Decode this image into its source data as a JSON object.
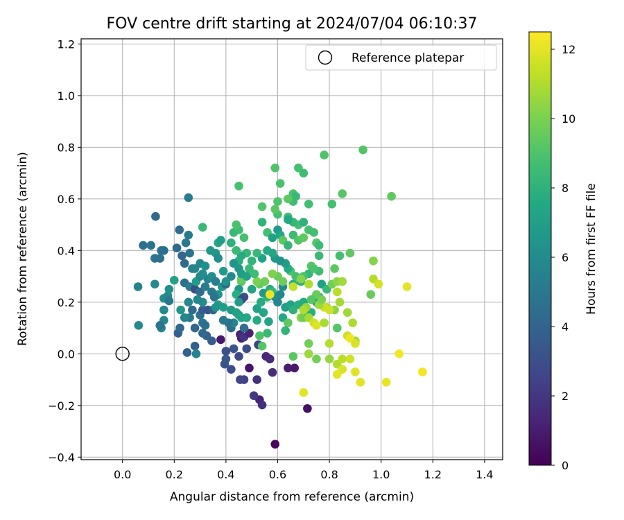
{
  "chart_data": {
    "type": "scatter",
    "title": "FOV centre drift starting at 2024/07/04 06:10:37",
    "xlabel": "Angular distance from reference (arcmin)",
    "ylabel": "Rotation from reference (arcmin)",
    "xlim": [
      -0.16,
      1.47
    ],
    "ylim": [
      -0.41,
      1.22
    ],
    "xticks": [
      "0.0",
      "0.2",
      "0.4",
      "0.6",
      "0.8",
      "1.0",
      "1.2",
      "1.4"
    ],
    "yticks": [
      "−0.4",
      "−0.2",
      "0.0",
      "0.2",
      "0.4",
      "0.6",
      "0.8",
      "1.0",
      "1.2"
    ],
    "grid": true,
    "legend_placement": "top-right",
    "legend": [
      "Reference platepar"
    ],
    "reference_point": {
      "x": 0.0,
      "y": 0.0
    },
    "colorbar": {
      "label": "Hours from first FF file",
      "range": [
        0,
        12.5
      ],
      "ticks": [
        "0",
        "2",
        "4",
        "6",
        "8",
        "10",
        "12"
      ],
      "colormap": "viridis"
    },
    "points": [
      [
        0.59,
        -0.35,
        0.3
      ],
      [
        0.715,
        -0.212,
        0.5
      ],
      [
        0.53,
        -0.178,
        1.2
      ],
      [
        0.54,
        -0.198,
        1.7
      ],
      [
        0.508,
        -0.162,
        2.1
      ],
      [
        0.52,
        -0.1,
        1.8
      ],
      [
        0.58,
        -0.072,
        1.6
      ],
      [
        0.64,
        -0.055,
        1.1
      ],
      [
        0.665,
        -0.055,
        0.9
      ],
      [
        0.49,
        -0.055,
        0.7
      ],
      [
        0.555,
        -0.01,
        1.3
      ],
      [
        0.57,
        -0.02,
        1.5
      ],
      [
        0.47,
        -0.1,
        2.4
      ],
      [
        0.455,
        -0.1,
        2.6
      ],
      [
        0.42,
        -0.06,
        2.9
      ],
      [
        0.395,
        -0.04,
        3.2
      ],
      [
        0.4,
        -0.02,
        3.4
      ],
      [
        0.45,
        -0.01,
        2.8
      ],
      [
        0.4,
        0.01,
        3.0
      ],
      [
        0.43,
        0.02,
        3.3
      ],
      [
        0.48,
        0.02,
        2.9
      ],
      [
        0.525,
        0.035,
        2.5
      ],
      [
        0.46,
        0.06,
        1.0
      ],
      [
        0.38,
        0.055,
        0.8
      ],
      [
        0.455,
        0.075,
        1.4
      ],
      [
        0.47,
        0.065,
        1.9
      ],
      [
        0.49,
        0.08,
        1.2
      ],
      [
        0.42,
        0.1,
        4.4
      ],
      [
        0.345,
        0.05,
        3.7
      ],
      [
        0.325,
        0.07,
        3.9
      ],
      [
        0.31,
        0.08,
        4.3
      ],
      [
        0.28,
        0.1,
        4.1
      ],
      [
        0.25,
        0.005,
        3.7
      ],
      [
        0.28,
        0.03,
        3.8
      ],
      [
        0.285,
        0.0,
        5.6
      ],
      [
        0.3,
        0.15,
        4.6
      ],
      [
        0.27,
        0.17,
        4.2
      ],
      [
        0.31,
        0.17,
        3.6
      ],
      [
        0.33,
        0.17,
        3.3
      ],
      [
        0.35,
        0.17,
        3.8
      ],
      [
        0.31,
        0.12,
        4.7
      ],
      [
        0.32,
        0.11,
        4.5
      ],
      [
        0.26,
        0.14,
        5.1
      ],
      [
        0.24,
        0.14,
        5.7
      ],
      [
        0.215,
        0.08,
        3.8
      ],
      [
        0.222,
        0.1,
        4.2
      ],
      [
        0.15,
        0.1,
        5.7
      ],
      [
        0.16,
        0.13,
        5.8
      ],
      [
        0.145,
        0.11,
        4.8
      ],
      [
        0.062,
        0.11,
        5.8
      ],
      [
        0.06,
        0.26,
        5.5
      ],
      [
        0.125,
        0.27,
        5.9
      ],
      [
        0.16,
        0.17,
        5.9
      ],
      [
        0.16,
        0.215,
        6.1
      ],
      [
        0.175,
        0.225,
        5.8
      ],
      [
        0.18,
        0.25,
        6.2
      ],
      [
        0.18,
        0.205,
        5.0
      ],
      [
        0.2,
        0.285,
        7.1
      ],
      [
        0.225,
        0.17,
        6.6
      ],
      [
        0.255,
        0.2,
        5.7
      ],
      [
        0.24,
        0.275,
        4.6
      ],
      [
        0.26,
        0.26,
        5.3
      ],
      [
        0.28,
        0.25,
        3.0
      ],
      [
        0.285,
        0.28,
        6.9
      ],
      [
        0.3,
        0.24,
        4.4
      ],
      [
        0.3,
        0.3,
        5.6
      ],
      [
        0.32,
        0.26,
        5.2
      ],
      [
        0.33,
        0.29,
        5.5
      ],
      [
        0.345,
        0.3,
        6.2
      ],
      [
        0.36,
        0.28,
        5.3
      ],
      [
        0.37,
        0.23,
        6.3
      ],
      [
        0.385,
        0.26,
        6.5
      ],
      [
        0.4,
        0.27,
        4.2
      ],
      [
        0.42,
        0.3,
        5.9
      ],
      [
        0.4,
        0.28,
        6.3
      ],
      [
        0.345,
        0.24,
        5.1
      ],
      [
        0.355,
        0.22,
        4.8
      ],
      [
        0.31,
        0.2,
        6.1
      ],
      [
        0.29,
        0.21,
        5.7
      ],
      [
        0.37,
        0.19,
        7.0
      ],
      [
        0.39,
        0.18,
        6.9
      ],
      [
        0.36,
        0.18,
        6.4
      ],
      [
        0.42,
        0.17,
        6.8
      ],
      [
        0.44,
        0.16,
        7.2
      ],
      [
        0.45,
        0.15,
        7.0
      ],
      [
        0.46,
        0.14,
        7.3
      ],
      [
        0.48,
        0.14,
        7.5
      ],
      [
        0.43,
        0.12,
        5.6
      ],
      [
        0.41,
        0.12,
        4.8
      ],
      [
        0.39,
        0.13,
        5.0
      ],
      [
        0.47,
        0.1,
        4.6
      ],
      [
        0.52,
        0.13,
        7.6
      ],
      [
        0.545,
        0.16,
        7.4
      ],
      [
        0.565,
        0.125,
        7.3
      ],
      [
        0.52,
        0.175,
        7.1
      ],
      [
        0.535,
        0.2,
        7.7
      ],
      [
        0.56,
        0.22,
        8.1
      ],
      [
        0.545,
        0.235,
        6.8
      ],
      [
        0.57,
        0.25,
        7.6
      ],
      [
        0.58,
        0.24,
        8.3
      ],
      [
        0.59,
        0.22,
        6.2
      ],
      [
        0.61,
        0.23,
        5.8
      ],
      [
        0.6,
        0.2,
        5.7
      ],
      [
        0.62,
        0.26,
        6.1
      ],
      [
        0.63,
        0.18,
        6.9
      ],
      [
        0.65,
        0.19,
        7.2
      ],
      [
        0.66,
        0.17,
        8.0
      ],
      [
        0.68,
        0.19,
        7.8
      ],
      [
        0.7,
        0.2,
        7.7
      ],
      [
        0.62,
        0.14,
        7.5
      ],
      [
        0.64,
        0.12,
        9.4
      ],
      [
        0.63,
        0.09,
        8.1
      ],
      [
        0.56,
        0.08,
        8.4
      ],
      [
        0.53,
        0.07,
        9.0
      ],
      [
        0.54,
        0.03,
        9.1
      ],
      [
        0.66,
        -0.01,
        9.3
      ],
      [
        0.69,
        0.14,
        10.3
      ],
      [
        0.7,
        0.14,
        9.7
      ],
      [
        0.72,
        0.15,
        8.6
      ],
      [
        0.73,
        0.16,
        7.8
      ],
      [
        0.75,
        0.2,
        7.2
      ],
      [
        0.76,
        0.22,
        6.9
      ],
      [
        0.77,
        0.27,
        7.1
      ],
      [
        0.79,
        0.25,
        8.3
      ],
      [
        0.76,
        0.32,
        8.6
      ],
      [
        0.73,
        0.34,
        9.2
      ],
      [
        0.72,
        0.31,
        8.2
      ],
      [
        0.7,
        0.3,
        8.9
      ],
      [
        0.69,
        0.28,
        7.9
      ],
      [
        0.66,
        0.27,
        7.8
      ],
      [
        0.67,
        0.3,
        8.7
      ],
      [
        0.65,
        0.32,
        8.9
      ],
      [
        0.64,
        0.33,
        7.6
      ],
      [
        0.63,
        0.35,
        6.9
      ],
      [
        0.61,
        0.36,
        6.3
      ],
      [
        0.59,
        0.37,
        6.6
      ],
      [
        0.58,
        0.39,
        7.4
      ],
      [
        0.56,
        0.4,
        7.6
      ],
      [
        0.54,
        0.37,
        7.2
      ],
      [
        0.52,
        0.39,
        8.4
      ],
      [
        0.5,
        0.36,
        8.1
      ],
      [
        0.48,
        0.39,
        8.3
      ],
      [
        0.46,
        0.38,
        7.6
      ],
      [
        0.45,
        0.36,
        7.8
      ],
      [
        0.44,
        0.4,
        8.4
      ],
      [
        0.42,
        0.43,
        7.9
      ],
      [
        0.43,
        0.47,
        8.3
      ],
      [
        0.45,
        0.48,
        8.6
      ],
      [
        0.47,
        0.45,
        8.8
      ],
      [
        0.44,
        0.5,
        8.9
      ],
      [
        0.54,
        0.51,
        8.1
      ],
      [
        0.56,
        0.47,
        8.7
      ],
      [
        0.58,
        0.45,
        7.1
      ],
      [
        0.6,
        0.48,
        6.7
      ],
      [
        0.61,
        0.46,
        7.5
      ],
      [
        0.62,
        0.44,
        9.3
      ],
      [
        0.64,
        0.42,
        8.2
      ],
      [
        0.66,
        0.46,
        8.5
      ],
      [
        0.68,
        0.44,
        9.1
      ],
      [
        0.7,
        0.45,
        9.4
      ],
      [
        0.72,
        0.48,
        8.8
      ],
      [
        0.74,
        0.47,
        8.7
      ],
      [
        0.75,
        0.43,
        9.2
      ],
      [
        0.76,
        0.42,
        8.5
      ],
      [
        0.68,
        0.5,
        8.7
      ],
      [
        0.66,
        0.51,
        8.3
      ],
      [
        0.7,
        0.51,
        8.0
      ],
      [
        0.64,
        0.53,
        8.6
      ],
      [
        0.6,
        0.54,
        8.8
      ],
      [
        0.59,
        0.56,
        9.3
      ],
      [
        0.6,
        0.59,
        9.0
      ],
      [
        0.64,
        0.52,
        7.5
      ],
      [
        0.66,
        0.59,
        8.6
      ],
      [
        0.66,
        0.62,
        8.9
      ],
      [
        0.67,
        0.61,
        8.4
      ],
      [
        0.72,
        0.58,
        8.7
      ],
      [
        0.61,
        0.66,
        8.9
      ],
      [
        0.64,
        0.6,
        9.4
      ],
      [
        0.7,
        0.7,
        8.6
      ],
      [
        0.59,
        0.72,
        9.0
      ],
      [
        0.68,
        0.72,
        8.8
      ],
      [
        0.78,
        0.77,
        9.0
      ],
      [
        0.93,
        0.79,
        9.1
      ],
      [
        1.04,
        0.61,
        9.4
      ],
      [
        0.85,
        0.62,
        9.2
      ],
      [
        0.81,
        0.58,
        8.8
      ],
      [
        0.54,
        0.57,
        9.1
      ],
      [
        0.45,
        0.65,
        8.8
      ],
      [
        0.88,
        0.39,
        9.4
      ],
      [
        0.84,
        0.38,
        8.7
      ],
      [
        0.76,
        0.38,
        8.4
      ],
      [
        0.74,
        0.33,
        8.9
      ],
      [
        0.82,
        0.33,
        9.3
      ],
      [
        0.81,
        0.27,
        9.8
      ],
      [
        0.83,
        0.28,
        10.3
      ],
      [
        0.85,
        0.28,
        10.7
      ],
      [
        0.83,
        0.24,
        11.2
      ],
      [
        0.84,
        0.2,
        10.8
      ],
      [
        0.82,
        0.17,
        10.3
      ],
      [
        0.79,
        0.18,
        11.0
      ],
      [
        0.78,
        0.18,
        11.5
      ],
      [
        0.8,
        0.17,
        11.6
      ],
      [
        0.76,
        0.19,
        10.6
      ],
      [
        0.77,
        0.21,
        10.0
      ],
      [
        0.75,
        0.23,
        9.6
      ],
      [
        0.73,
        0.21,
        9.2
      ],
      [
        0.71,
        0.18,
        10.5
      ],
      [
        0.7,
        0.17,
        11.0
      ],
      [
        0.72,
        0.14,
        10.8
      ],
      [
        0.74,
        0.12,
        11.6
      ],
      [
        0.75,
        0.11,
        11.9
      ],
      [
        0.78,
        0.12,
        10.9
      ],
      [
        0.83,
        0.1,
        9.1
      ],
      [
        0.87,
        0.16,
        10.7
      ],
      [
        0.89,
        0.12,
        10.9
      ],
      [
        0.9,
        0.05,
        10.7
      ],
      [
        0.87,
        0.07,
        11.5
      ],
      [
        0.88,
        0.06,
        12.2
      ],
      [
        0.9,
        0.04,
        11.8
      ],
      [
        0.8,
        0.04,
        11.1
      ],
      [
        0.72,
        0.04,
        9.8
      ],
      [
        0.72,
        0.0,
        10.6
      ],
      [
        0.75,
        -0.02,
        9.8
      ],
      [
        0.8,
        -0.02,
        10.5
      ],
      [
        0.83,
        -0.04,
        11.0
      ],
      [
        0.85,
        -0.06,
        11.8
      ],
      [
        0.83,
        -0.08,
        12.0
      ],
      [
        0.85,
        -0.02,
        11.2
      ],
      [
        0.88,
        -0.02,
        11.6
      ],
      [
        0.9,
        -0.07,
        11.9
      ],
      [
        0.92,
        -0.11,
        12.0
      ],
      [
        1.02,
        -0.11,
        12.1
      ],
      [
        1.07,
        0.0,
        12.3
      ],
      [
        1.16,
        -0.07,
        12.3
      ],
      [
        0.96,
        0.23,
        9.6
      ],
      [
        0.97,
        0.29,
        11.1
      ],
      [
        0.99,
        0.27,
        11.7
      ],
      [
        0.97,
        0.36,
        10.2
      ],
      [
        1.1,
        0.26,
        12.0
      ],
      [
        0.7,
        -0.15,
        12.0
      ],
      [
        0.72,
        0.27,
        11.0
      ],
      [
        0.69,
        0.29,
        10.2
      ],
      [
        0.66,
        0.26,
        11.4
      ],
      [
        0.62,
        0.28,
        9.7
      ],
      [
        0.6,
        0.3,
        9.6
      ],
      [
        0.58,
        0.31,
        10.1
      ],
      [
        0.57,
        0.23,
        12.2
      ],
      [
        0.55,
        0.28,
        9.8
      ],
      [
        0.53,
        0.27,
        9.5
      ],
      [
        0.52,
        0.28,
        10.0
      ],
      [
        0.51,
        0.31,
        8.6
      ],
      [
        0.49,
        0.33,
        8.4
      ],
      [
        0.46,
        0.28,
        9.2
      ],
      [
        0.46,
        0.29,
        9.6
      ],
      [
        0.45,
        0.25,
        6.5
      ],
      [
        0.44,
        0.23,
        7.8
      ],
      [
        0.47,
        0.22,
        3.1
      ],
      [
        0.46,
        0.21,
        2.6
      ],
      [
        0.45,
        0.2,
        6.8
      ],
      [
        0.08,
        0.42,
        4.5
      ],
      [
        0.11,
        0.42,
        4.8
      ],
      [
        0.125,
        0.37,
        4.7
      ],
      [
        0.128,
        0.532,
        4.3
      ],
      [
        0.145,
        0.37,
        4.6
      ],
      [
        0.15,
        0.4,
        4.9
      ],
      [
        0.16,
        0.4,
        4.5
      ],
      [
        0.21,
        0.41,
        4.2
      ],
      [
        0.22,
        0.48,
        4.4
      ],
      [
        0.23,
        0.38,
        4.1
      ],
      [
        0.24,
        0.35,
        4.3
      ],
      [
        0.245,
        0.43,
        5.1
      ],
      [
        0.255,
        0.46,
        5.2
      ],
      [
        0.255,
        0.605,
        5.3
      ],
      [
        0.26,
        0.39,
        4.8
      ],
      [
        0.27,
        0.33,
        5.5
      ],
      [
        0.28,
        0.33,
        5.6
      ],
      [
        0.3,
        0.35,
        5.7
      ],
      [
        0.31,
        0.31,
        6.1
      ],
      [
        0.32,
        0.34,
        6.2
      ],
      [
        0.31,
        0.49,
        8.4
      ],
      [
        0.34,
        0.4,
        6.5
      ],
      [
        0.36,
        0.39,
        6.6
      ],
      [
        0.37,
        0.43,
        7.5
      ],
      [
        0.38,
        0.44,
        6.9
      ],
      [
        0.37,
        0.37,
        6.0
      ],
      [
        0.39,
        0.32,
        6.8
      ],
      [
        0.43,
        0.35,
        6.4
      ],
      [
        0.45,
        0.33,
        6.6
      ],
      [
        0.46,
        0.31,
        6.9
      ],
      [
        0.48,
        0.3,
        7.2
      ],
      [
        0.5,
        0.25,
        7.3
      ]
    ]
  }
}
